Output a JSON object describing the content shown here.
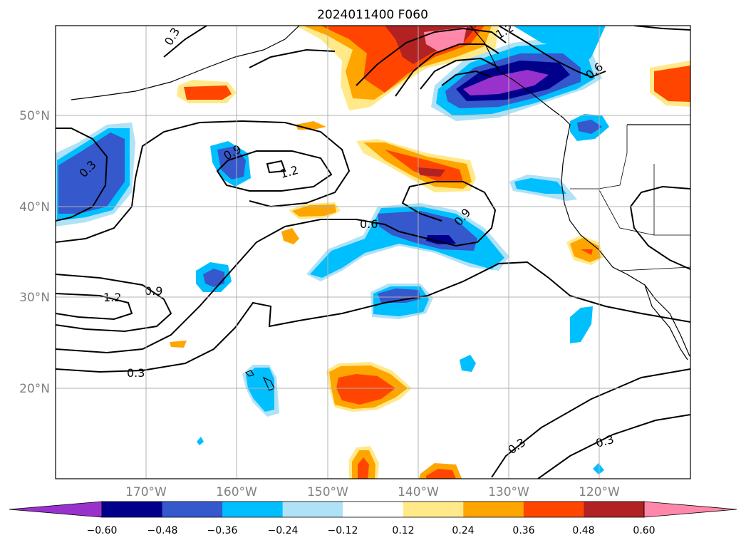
{
  "title": "2024011400 F060",
  "map": {
    "lat_labels": [
      "50°N",
      "40°N",
      "30°N",
      "20°N"
    ],
    "lon_labels": [
      "170°W",
      "160°W",
      "150°W",
      "140°W",
      "130°W",
      "120°W"
    ],
    "extent": {
      "lon_min": -180,
      "lon_max": -110,
      "lat_min": 10,
      "lat_max": 60
    },
    "gridlines": true
  },
  "contour_labels": [
    "0.3",
    "0.9",
    "1.2",
    "0.6",
    "0.9",
    "0.3",
    "1.2",
    "0.9",
    "0.3",
    "0.3",
    "0.3",
    "1.2",
    "0.6"
  ],
  "colorbar": {
    "ticks": [
      "−0.60",
      "−0.48",
      "−0.36",
      "−0.24",
      "−0.12",
      "0.12",
      "0.24",
      "0.36",
      "0.48",
      "0.60"
    ],
    "colors": [
      "#9932cc",
      "#00008b",
      "#3558cc",
      "#00bfff",
      "#afe2f7",
      "#ffffff",
      "#ffe989",
      "#ffa500",
      "#ff4500",
      "#b22222",
      "#ff88aa"
    ],
    "extend": "both"
  }
}
